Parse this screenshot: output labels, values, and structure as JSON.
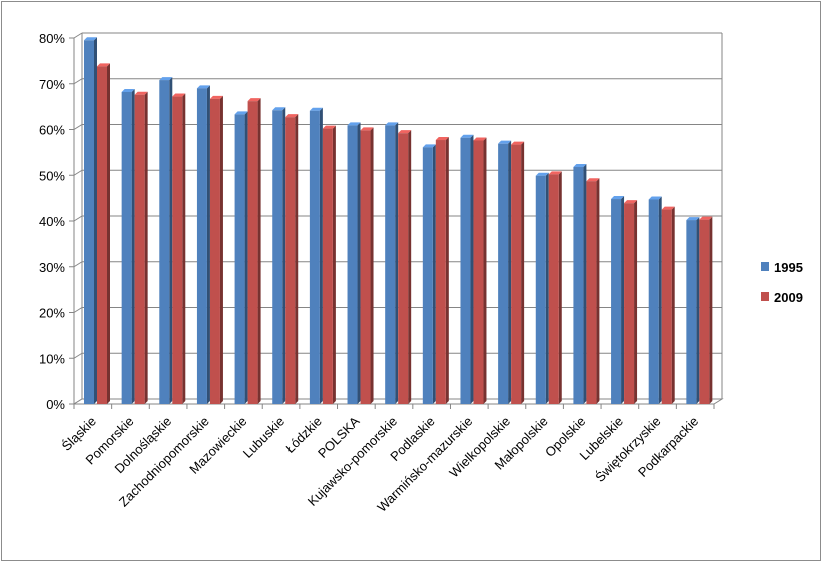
{
  "chart_data": {
    "type": "bar",
    "title": "",
    "xlabel": "",
    "ylabel": "",
    "ylim": [
      0,
      0.8
    ],
    "y_tick_labels": [
      "0%",
      "10%",
      "20%",
      "30%",
      "40%",
      "50%",
      "60%",
      "70%",
      "80%"
    ],
    "grid": true,
    "legend_position": "right",
    "categories": [
      "Śląskie",
      "Pomorskie",
      "Dolnośląskie",
      "Zachodniopomorskie",
      "Mazowieckie",
      "Lubuskie",
      "Łódzkie",
      "POLSKA",
      "Kujawsko-pomorskie",
      "Podlaskie",
      "Warmińsko-mazurskie",
      "Wielkopolskie",
      "Małopolskie",
      "Opolskie",
      "Lubelskie",
      "Świętokrzyskie",
      "Podkarpackie"
    ],
    "series": [
      {
        "name": "1995",
        "color": "#4f81bd",
        "values": [
          0.795,
          0.682,
          0.708,
          0.69,
          0.633,
          0.642,
          0.641,
          0.609,
          0.609,
          0.561,
          0.582,
          0.569,
          0.499,
          0.518,
          0.448,
          0.447,
          0.402
        ]
      },
      {
        "name": "2009",
        "color": "#c0504d",
        "values": [
          0.738,
          0.676,
          0.672,
          0.667,
          0.662,
          0.627,
          0.602,
          0.598,
          0.592,
          0.577,
          0.576,
          0.567,
          0.502,
          0.487,
          0.439,
          0.425,
          0.403
        ]
      }
    ]
  }
}
